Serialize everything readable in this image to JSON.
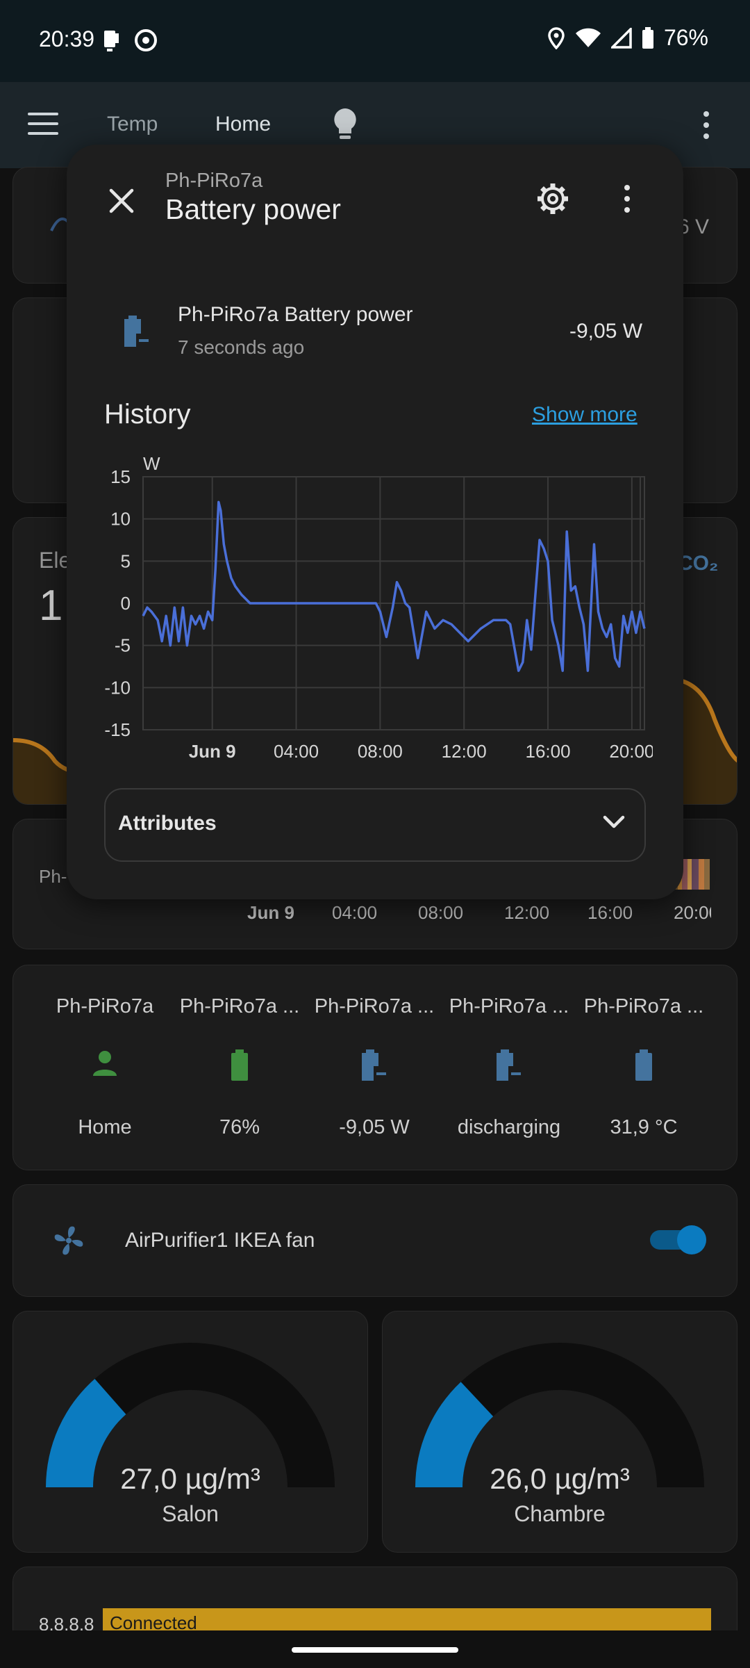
{
  "status_bar": {
    "time": "20:39",
    "battery": "76%"
  },
  "app_bar": {
    "tabs": [
      {
        "label": "Temp"
      },
      {
        "label": "Home"
      }
    ]
  },
  "dialog": {
    "subtitle": "Ph-PiRo7a",
    "title": "Battery power",
    "entity_name": "Ph-PiRo7a Battery power",
    "last_changed": "7 seconds ago",
    "state": "-9,05 W",
    "history_title": "History",
    "show_more": "Show more",
    "attributes_label": "Attributes"
  },
  "background": {
    "peek_voltage": "6 V",
    "peek_ele": "Ele",
    "peek_big": "1",
    "peek_co2": "CO₂",
    "peek_ph": "Ph-",
    "timeline_ticks": [
      "Jun 9",
      "04:00",
      "08:00",
      "12:00",
      "16:00",
      "20:00"
    ]
  },
  "glance": {
    "items": [
      {
        "name": "Ph-PiRo7a",
        "state": "Home",
        "icon": "person-icon",
        "color": "#3f8f3f"
      },
      {
        "name": "Ph-PiRo7a ...",
        "state": "76%",
        "icon": "battery-icon",
        "color": "#3f8f3f"
      },
      {
        "name": "Ph-PiRo7a ...",
        "state": "-9,05 W",
        "icon": "battery-discharge-icon",
        "color": "#44739e"
      },
      {
        "name": "Ph-PiRo7a ...",
        "state": "discharging",
        "icon": "battery-discharge-icon",
        "color": "#44739e"
      },
      {
        "name": "Ph-PiRo7a ...",
        "state": "31,9 °C",
        "icon": "battery-icon",
        "color": "#44739e"
      }
    ]
  },
  "fan": {
    "name": "AirPurifier1 IKEA fan",
    "on": true
  },
  "gauges": [
    {
      "value": "27,0 µg/m³",
      "name": "Salon",
      "level": 0.27
    },
    {
      "value": "26,0 µg/m³",
      "name": "Chambre",
      "level": 0.26
    }
  ],
  "ping": {
    "label": "8.8.8.8",
    "status": "Connected"
  },
  "colors": {
    "accent": "#0b7bc0",
    "chart_line": "#4a6fd8",
    "link": "#2c9fe0"
  },
  "chart_data": {
    "type": "line",
    "ylabel": "W",
    "ylim": [
      -15,
      15
    ],
    "yticks": [
      15,
      10,
      5,
      0,
      -5,
      -10,
      -15
    ],
    "xticks": [
      "Jun 9",
      "04:00",
      "08:00",
      "12:00",
      "16:00",
      "20:00"
    ],
    "xticks_hours": [
      0,
      4,
      8,
      12,
      16,
      20
    ],
    "xlim_hours": [
      -3.3,
      20.6
    ],
    "series": [
      {
        "x": [
          -3.3,
          -3.1,
          -2.9,
          -2.6,
          -2.4,
          -2.2,
          -2.0,
          -1.8,
          -1.6,
          -1.4,
          -1.2,
          -1.0,
          -0.8,
          -0.6,
          -0.4,
          -0.2,
          0.0,
          0.15,
          0.3,
          0.4,
          0.55,
          0.7,
          0.9,
          1.1,
          1.4,
          1.6,
          1.8,
          2.2,
          3.0,
          4.0,
          5.0,
          6.0,
          7.0,
          7.8,
          8.0,
          8.3,
          8.6,
          8.8,
          9.0,
          9.2,
          9.4,
          9.8,
          10.2,
          10.6,
          11.0,
          11.4,
          11.8,
          12.2,
          12.8,
          13.4,
          14.0,
          14.2,
          14.6,
          14.8,
          15.0,
          15.2,
          15.4,
          15.6,
          15.8,
          16.0,
          16.2,
          16.5,
          16.7,
          16.9,
          17.1,
          17.3,
          17.5,
          17.7,
          17.9,
          18.2,
          18.4,
          18.6,
          18.8,
          19.0,
          19.2,
          19.4,
          19.6,
          19.8,
          20.0,
          20.2,
          20.4,
          20.6
        ],
        "y": [
          -1.5,
          -0.5,
          -1.0,
          -2.0,
          -4.5,
          -1.5,
          -5.0,
          -0.5,
          -4.5,
          -0.5,
          -5.0,
          -1.5,
          -2.5,
          -1.5,
          -3.0,
          -1.0,
          -2.0,
          4.0,
          12.0,
          11.0,
          7.0,
          5.0,
          3.0,
          2.0,
          1.0,
          0.5,
          0,
          0,
          0,
          0,
          0,
          0,
          0,
          0,
          -1.0,
          -4.0,
          -0.5,
          2.5,
          1.5,
          0,
          -0.5,
          -6.5,
          -1.0,
          -3.0,
          -2.0,
          -2.5,
          -3.5,
          -4.5,
          -3.0,
          -2.0,
          -2.0,
          -2.5,
          -8.0,
          -7.0,
          -2.0,
          -5.5,
          1.0,
          7.5,
          6.5,
          5.0,
          -2.0,
          -5.0,
          -8.0,
          8.5,
          1.5,
          2.0,
          -0.5,
          -2.5,
          -8.0,
          7.0,
          -1.0,
          -3.0,
          -4.0,
          -2.5,
          -6.5,
          -7.5,
          -1.5,
          -3.5,
          -1.0,
          -3.5,
          -1.0,
          -3.0
        ]
      }
    ]
  }
}
